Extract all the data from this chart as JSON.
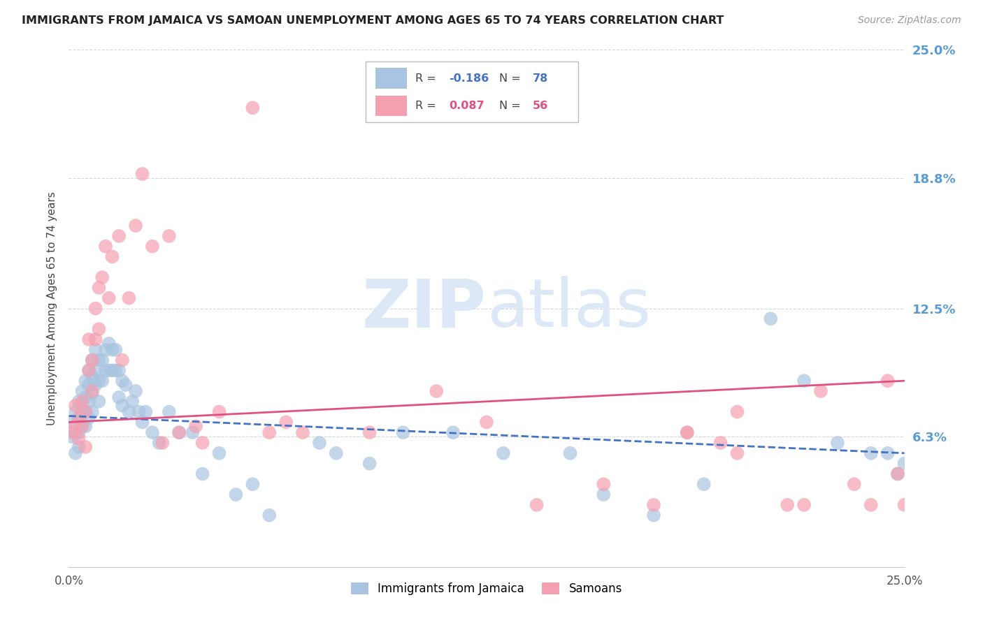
{
  "title": "IMMIGRANTS FROM JAMAICA VS SAMOAN UNEMPLOYMENT AMONG AGES 65 TO 74 YEARS CORRELATION CHART",
  "source": "Source: ZipAtlas.com",
  "ylabel": "Unemployment Among Ages 65 to 74 years",
  "xlim": [
    0.0,
    0.25
  ],
  "ylim": [
    0.0,
    0.25
  ],
  "jamaica_color": "#a8c4e0",
  "samoa_color": "#f4a0b0",
  "jamaica_line_color": "#4472c4",
  "samoa_line_color": "#e05080",
  "watermark_color": "#dce8f5",
  "background_color": "#ffffff",
  "grid_color": "#cccccc",
  "right_label_color": "#5b9bd5",
  "jamaica_R": -0.186,
  "jamaica_N": 78,
  "samoa_R": 0.087,
  "samoa_N": 56,
  "jamaica_x": [
    0.001,
    0.001,
    0.002,
    0.002,
    0.002,
    0.003,
    0.003,
    0.003,
    0.003,
    0.004,
    0.004,
    0.004,
    0.005,
    0.005,
    0.005,
    0.005,
    0.006,
    0.006,
    0.006,
    0.006,
    0.007,
    0.007,
    0.007,
    0.007,
    0.008,
    0.008,
    0.008,
    0.009,
    0.009,
    0.009,
    0.01,
    0.01,
    0.011,
    0.011,
    0.012,
    0.012,
    0.013,
    0.013,
    0.014,
    0.014,
    0.015,
    0.015,
    0.016,
    0.016,
    0.017,
    0.018,
    0.019,
    0.02,
    0.021,
    0.022,
    0.023,
    0.025,
    0.027,
    0.03,
    0.033,
    0.037,
    0.04,
    0.045,
    0.05,
    0.055,
    0.06,
    0.075,
    0.08,
    0.09,
    0.1,
    0.115,
    0.13,
    0.15,
    0.16,
    0.175,
    0.19,
    0.21,
    0.22,
    0.23,
    0.24,
    0.245,
    0.248,
    0.25
  ],
  "jamaica_y": [
    0.063,
    0.07,
    0.075,
    0.065,
    0.055,
    0.08,
    0.072,
    0.065,
    0.058,
    0.085,
    0.075,
    0.068,
    0.09,
    0.082,
    0.075,
    0.068,
    0.095,
    0.088,
    0.08,
    0.072,
    0.1,
    0.092,
    0.084,
    0.075,
    0.105,
    0.095,
    0.088,
    0.1,
    0.09,
    0.08,
    0.1,
    0.09,
    0.105,
    0.095,
    0.108,
    0.095,
    0.105,
    0.095,
    0.105,
    0.095,
    0.095,
    0.082,
    0.09,
    0.078,
    0.088,
    0.075,
    0.08,
    0.085,
    0.075,
    0.07,
    0.075,
    0.065,
    0.06,
    0.075,
    0.065,
    0.065,
    0.045,
    0.055,
    0.035,
    0.04,
    0.025,
    0.06,
    0.055,
    0.05,
    0.065,
    0.065,
    0.055,
    0.055,
    0.035,
    0.025,
    0.04,
    0.12,
    0.09,
    0.06,
    0.055,
    0.055,
    0.045,
    0.05
  ],
  "samoa_x": [
    0.001,
    0.002,
    0.002,
    0.003,
    0.003,
    0.004,
    0.004,
    0.005,
    0.005,
    0.006,
    0.006,
    0.007,
    0.007,
    0.008,
    0.008,
    0.009,
    0.009,
    0.01,
    0.011,
    0.012,
    0.013,
    0.015,
    0.016,
    0.018,
    0.02,
    0.022,
    0.025,
    0.028,
    0.03,
    0.033,
    0.038,
    0.04,
    0.045,
    0.055,
    0.06,
    0.065,
    0.07,
    0.09,
    0.11,
    0.125,
    0.14,
    0.16,
    0.175,
    0.185,
    0.195,
    0.2,
    0.215,
    0.225,
    0.235,
    0.245,
    0.248,
    0.25,
    0.24,
    0.22,
    0.2,
    0.185
  ],
  "samoa_y": [
    0.065,
    0.068,
    0.078,
    0.062,
    0.072,
    0.068,
    0.08,
    0.058,
    0.075,
    0.095,
    0.11,
    0.085,
    0.1,
    0.125,
    0.11,
    0.135,
    0.115,
    0.14,
    0.155,
    0.13,
    0.15,
    0.16,
    0.1,
    0.13,
    0.165,
    0.19,
    0.155,
    0.06,
    0.16,
    0.065,
    0.068,
    0.06,
    0.075,
    0.222,
    0.065,
    0.07,
    0.065,
    0.065,
    0.085,
    0.07,
    0.03,
    0.04,
    0.03,
    0.065,
    0.06,
    0.055,
    0.03,
    0.085,
    0.04,
    0.09,
    0.045,
    0.03,
    0.03,
    0.03,
    0.075,
    0.065
  ]
}
